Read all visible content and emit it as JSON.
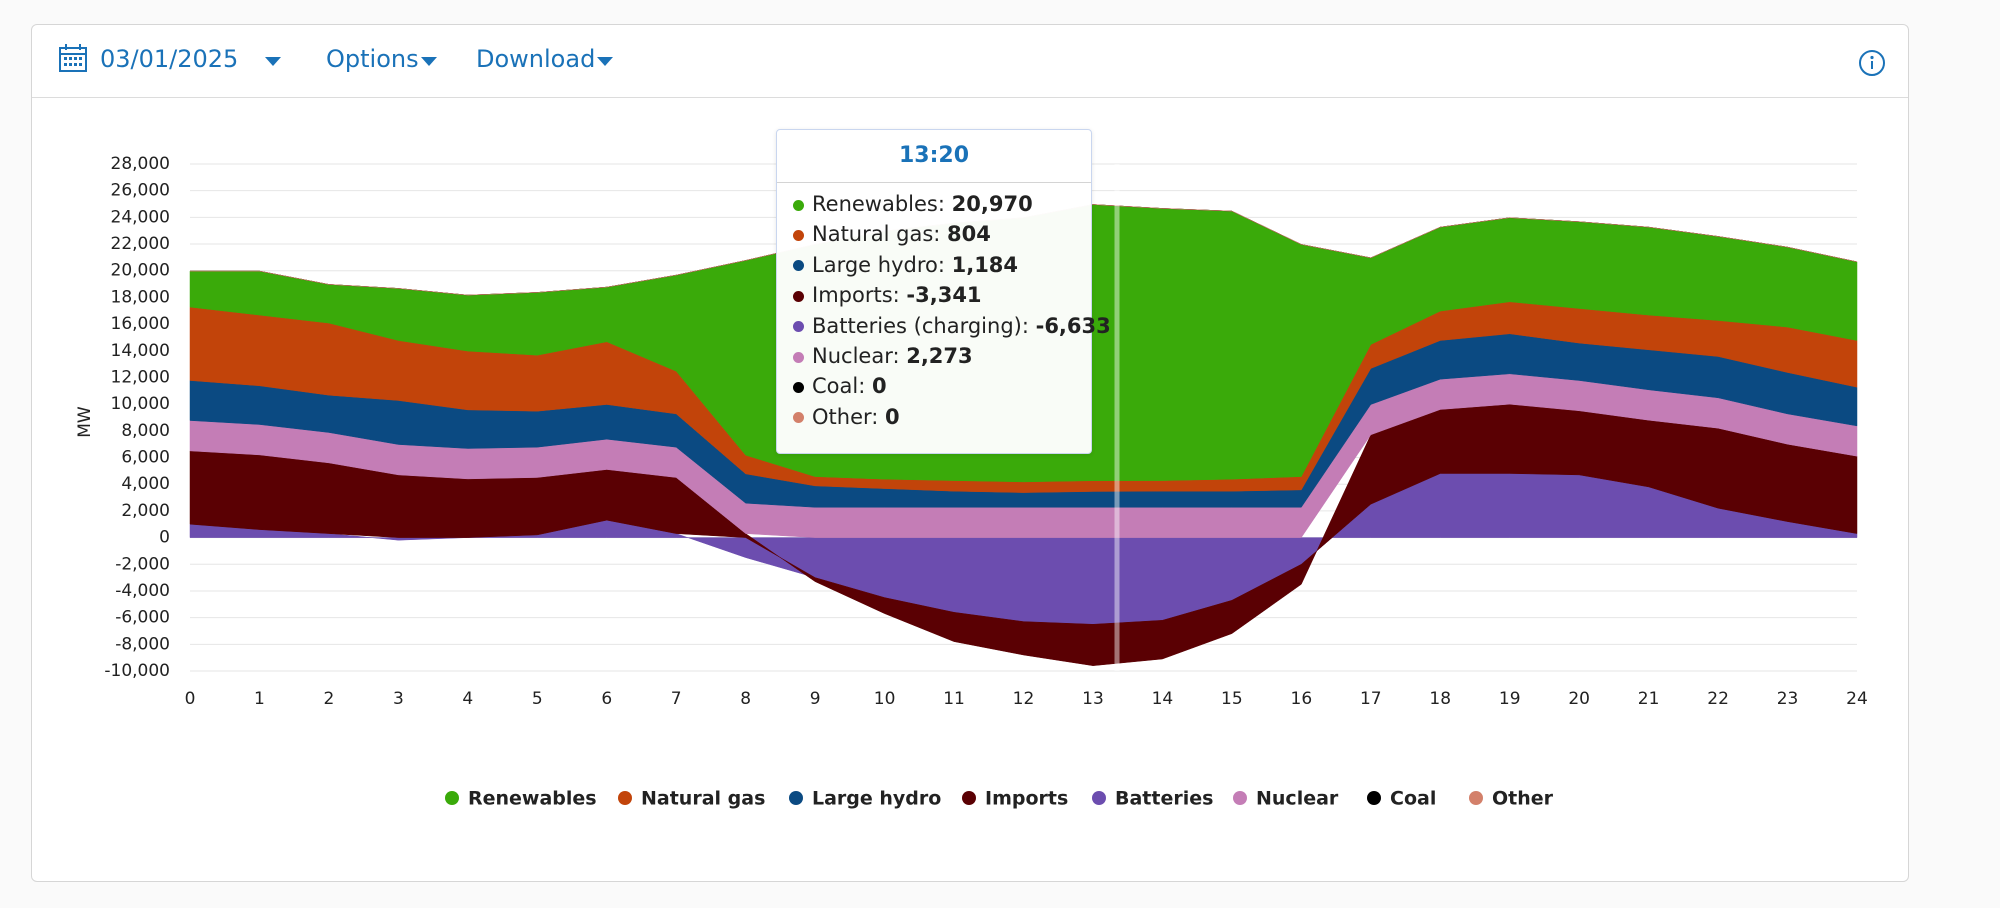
{
  "toolbar": {
    "date": "03/01/2025",
    "options": "Options",
    "download": "Download"
  },
  "chart_data": {
    "type": "area",
    "stacked": true,
    "ylabel": "MW",
    "x": [
      0,
      1,
      2,
      3,
      4,
      5,
      6,
      7,
      8,
      9,
      10,
      11,
      12,
      13,
      14,
      15,
      16,
      17,
      18,
      19,
      20,
      21,
      22,
      23,
      24
    ],
    "xlim": [
      0,
      24
    ],
    "xticks": [
      0,
      1,
      2,
      3,
      4,
      5,
      6,
      7,
      8,
      9,
      10,
      11,
      12,
      13,
      14,
      15,
      16,
      17,
      18,
      19,
      20,
      21,
      22,
      23,
      24
    ],
    "ylim": [
      -10000,
      28000
    ],
    "yticks": [
      {
        "value": -10000,
        "label": "-10,000"
      },
      {
        "value": -8000,
        "label": "-8,000"
      },
      {
        "value": -6000,
        "label": "-6,000"
      },
      {
        "value": -4000,
        "label": "-4,000"
      },
      {
        "value": -2000,
        "label": "-2,000"
      },
      0,
      {
        "value": 2000,
        "label": "2,000"
      },
      {
        "value": 4000,
        "label": "4,000"
      },
      {
        "value": 6000,
        "label": "6,000"
      },
      {
        "value": 8000,
        "label": "8,000"
      },
      {
        "value": 10000,
        "label": "10,000"
      },
      {
        "value": 12000,
        "label": "12,000"
      },
      {
        "value": 14000,
        "label": "14,000"
      },
      {
        "value": 16000,
        "label": "16,000"
      },
      {
        "value": 18000,
        "label": "18,000"
      },
      {
        "value": 20000,
        "label": "20,000"
      },
      {
        "value": 22000,
        "label": "22,000"
      },
      {
        "value": 24000,
        "label": "24,000"
      },
      {
        "value": 26000,
        "label": "26,000"
      },
      {
        "value": 28000,
        "label": "28,000"
      }
    ],
    "grid": true,
    "legend": "bottom",
    "series": [
      {
        "name": "Renewables",
        "color": "#3aaa0a",
        "values": [
          2700,
          3300,
          2900,
          3900,
          4200,
          4700,
          4100,
          7200,
          14600,
          17400,
          18600,
          19300,
          19800,
          20700,
          20400,
          20100,
          17400,
          6500,
          6300,
          6300,
          6500,
          6600,
          6300,
          6000,
          5900
        ]
      },
      {
        "name": "Natural gas",
        "color": "#c2440a",
        "values": [
          5500,
          5300,
          5400,
          4500,
          4400,
          4200,
          4700,
          3200,
          1400,
          700,
          700,
          800,
          800,
          804,
          800,
          900,
          1000,
          1800,
          2200,
          2400,
          2600,
          2600,
          2700,
          3400,
          3500
        ]
      },
      {
        "name": "Large hydro",
        "color": "#0b4a82",
        "values": [
          3000,
          2900,
          2800,
          3300,
          2900,
          2700,
          2600,
          2500,
          2200,
          1600,
          1400,
          1200,
          1100,
          1184,
          1200,
          1200,
          1300,
          2700,
          2900,
          3000,
          2800,
          3000,
          3100,
          3100,
          2900
        ]
      },
      {
        "name": "Imports",
        "color": "#5a0003",
        "values": [
          5500,
          5600,
          5300,
          4700,
          4400,
          4300,
          3800,
          4200,
          300,
          -300,
          -1200,
          -2200,
          -2500,
          -3100,
          -2900,
          -2500,
          -1500,
          5200,
          4800,
          5200,
          4800,
          5000,
          6000,
          5800,
          5800
        ]
      },
      {
        "name": "Batteries",
        "color": "#6c4daf",
        "values": [
          1000,
          600,
          300,
          -200,
          0,
          200,
          1300,
          300,
          -1500,
          -3000,
          -4500,
          -5600,
          -6300,
          -6500,
          -6200,
          -4700,
          -2000,
          2500,
          4800,
          4800,
          4700,
          3800,
          2200,
          1200,
          300
        ]
      },
      {
        "name": "Nuclear",
        "color": "#c47db6",
        "values": [
          2273,
          2273,
          2273,
          2273,
          2273,
          2273,
          2273,
          2273,
          2273,
          2273,
          2273,
          2273,
          2273,
          2273,
          2273,
          2273,
          2273,
          2273,
          2273,
          2273,
          2273,
          2273,
          2273,
          2273,
          2273
        ]
      },
      {
        "name": "Coal",
        "color": "#000000",
        "values": [
          0,
          0,
          0,
          0,
          0,
          0,
          0,
          0,
          0,
          0,
          0,
          0,
          0,
          0,
          0,
          0,
          0,
          0,
          0,
          0,
          0,
          0,
          0,
          0,
          0
        ]
      },
      {
        "name": "Other",
        "color": "#d3806a",
        "values": [
          0,
          0,
          0,
          0,
          0,
          0,
          0,
          0,
          0,
          0,
          0,
          0,
          0,
          0,
          0,
          0,
          0,
          0,
          0,
          0,
          0,
          0,
          0,
          0,
          0
        ]
      }
    ]
  },
  "tooltip": {
    "title": "13:20",
    "labels": [
      "Renewables:",
      "Natural gas:",
      "Large hydro:",
      "Imports:",
      "Batteries (charging):",
      "Nuclear:",
      "Coal:",
      "Other:"
    ],
    "values": [
      20970,
      804,
      1184,
      -3341,
      -6633,
      2273,
      0,
      0
    ],
    "value_labels": [
      "20,970",
      "804",
      "1,184",
      "-3,341",
      "-6,633",
      "2,273",
      "0",
      "0"
    ]
  }
}
